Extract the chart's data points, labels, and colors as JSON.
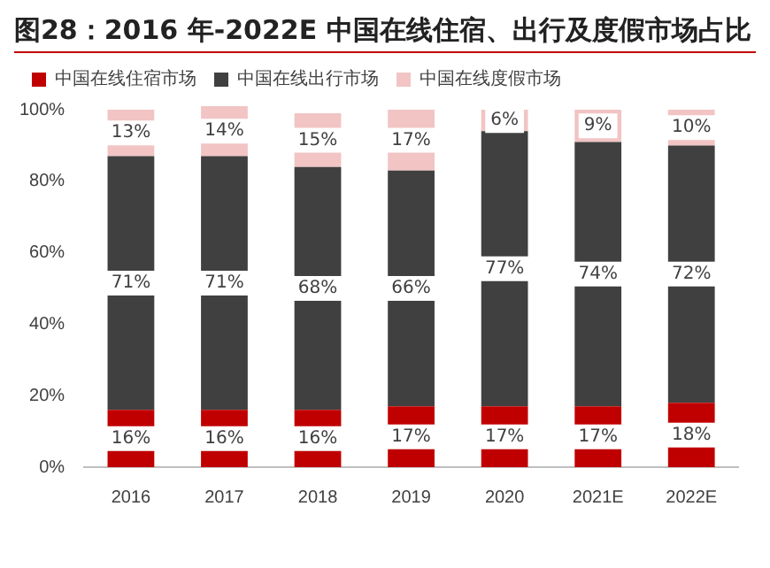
{
  "chart_data": {
    "type": "bar",
    "title": "图28：2016 年-2022E 中国在线住宿、出行及度假市场占比",
    "categories": [
      "2016",
      "2017",
      "2018",
      "2019",
      "2020",
      "2021E",
      "2022E"
    ],
    "stacked": true,
    "series": [
      {
        "name": "中国在线住宿市场",
        "color": "#c00000",
        "values": [
          16,
          16,
          16,
          17,
          17,
          17,
          18
        ],
        "value_labels": [
          "16%",
          "16%",
          "16%",
          "17%",
          "17%",
          "17%",
          "18%"
        ]
      },
      {
        "name": "中国在线出行市场",
        "color": "#404040",
        "values": [
          71,
          71,
          68,
          66,
          77,
          74,
          72
        ],
        "value_labels": [
          "71%",
          "71%",
          "68%",
          "66%",
          "77%",
          "74%",
          "72%"
        ]
      },
      {
        "name": "中国在线度假市场",
        "color": "#f2c4c4",
        "values": [
          13,
          14,
          15,
          17,
          6,
          9,
          10
        ],
        "value_labels": [
          "13%",
          "14%",
          "15%",
          "17%",
          "6%",
          "9%",
          "10%"
        ]
      }
    ],
    "ylim": [
      0,
      101
    ],
    "yticks": [
      {
        "value": 0,
        "label": "0%"
      },
      {
        "value": 20,
        "label": "20%"
      },
      {
        "value": 40,
        "label": "40%"
      },
      {
        "value": 60,
        "label": "60%"
      },
      {
        "value": 80,
        "label": "80%"
      },
      {
        "value": 100,
        "label": "100%"
      }
    ],
    "legend": "top left"
  }
}
